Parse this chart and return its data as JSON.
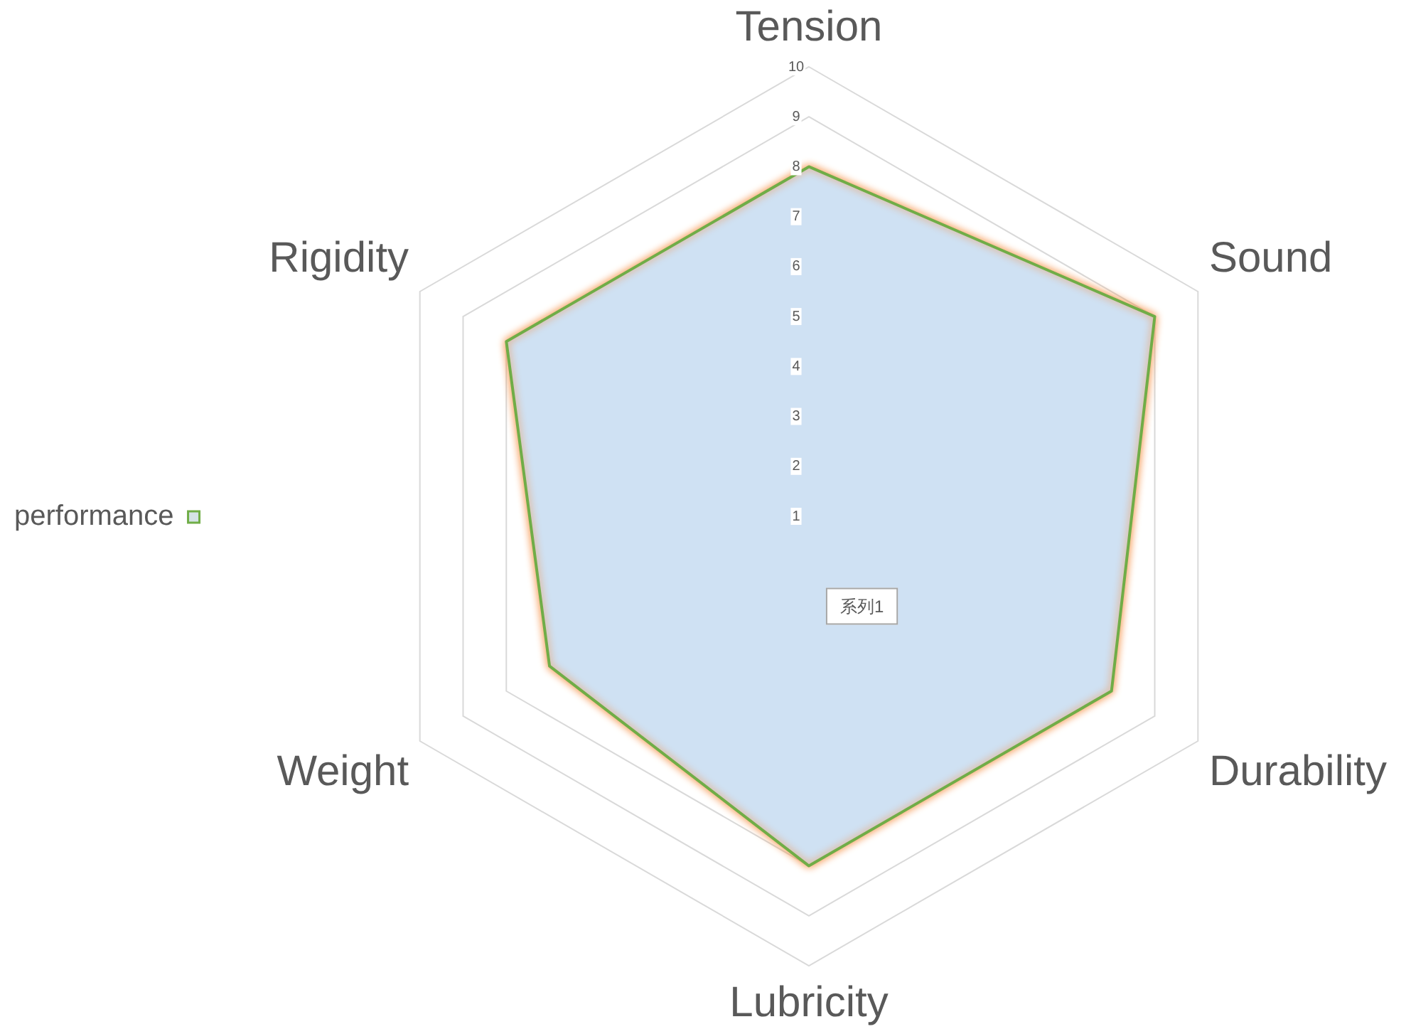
{
  "chart_data": {
    "type": "radar",
    "categories": [
      "Tension",
      "Sound",
      "Durability",
      "Lubricity",
      "Weight",
      "Rigidity"
    ],
    "series": [
      {
        "name": "performance",
        "color": "#70ad47",
        "values": [
          8,
          9,
          8,
          8,
          7,
          8
        ]
      }
    ],
    "ylim": [
      1,
      10
    ],
    "yticks": [
      1,
      2,
      3,
      4,
      5,
      6,
      7,
      8,
      9,
      10
    ],
    "grid": true,
    "legend": "left",
    "annotations": [
      "系列1"
    ]
  }
}
